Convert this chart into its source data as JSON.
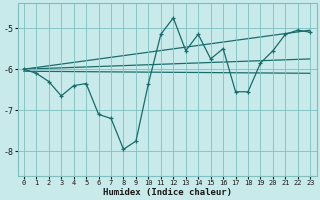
{
  "xlabel": "Humidex (Indice chaleur)",
  "background_color": "#c8eaea",
  "grid_color": "#7fbfbf",
  "line_color": "#1a6b6b",
  "xlim": [
    -0.5,
    23.5
  ],
  "ylim": [
    -8.6,
    -4.4
  ],
  "yticks": [
    -8,
    -7,
    -6,
    -5
  ],
  "xticks": [
    0,
    1,
    2,
    3,
    4,
    5,
    6,
    7,
    8,
    9,
    10,
    11,
    12,
    13,
    14,
    15,
    16,
    17,
    18,
    19,
    20,
    21,
    22,
    23
  ],
  "series": [
    [
      0,
      -6.0
    ],
    [
      1,
      -6.1
    ],
    [
      2,
      -6.3
    ],
    [
      3,
      -6.65
    ],
    [
      4,
      -6.4
    ],
    [
      5,
      -6.35
    ],
    [
      6,
      -7.1
    ],
    [
      7,
      -7.2
    ],
    [
      8,
      -7.95
    ],
    [
      9,
      -7.75
    ],
    [
      10,
      -6.35
    ],
    [
      11,
      -5.15
    ],
    [
      12,
      -4.75
    ],
    [
      13,
      -5.55
    ],
    [
      14,
      -5.15
    ],
    [
      15,
      -5.75
    ],
    [
      16,
      -5.5
    ],
    [
      17,
      -6.55
    ],
    [
      18,
      -6.55
    ],
    [
      19,
      -5.85
    ],
    [
      20,
      -5.55
    ],
    [
      21,
      -5.15
    ],
    [
      22,
      -5.05
    ],
    [
      23,
      -5.1
    ]
  ],
  "trend_lines": [
    [
      [
        0,
        -6.0
      ],
      [
        23,
        -5.05
      ]
    ],
    [
      [
        0,
        -6.0
      ],
      [
        23,
        -5.75
      ]
    ],
    [
      [
        0,
        -6.05
      ],
      [
        23,
        -6.1
      ]
    ]
  ]
}
